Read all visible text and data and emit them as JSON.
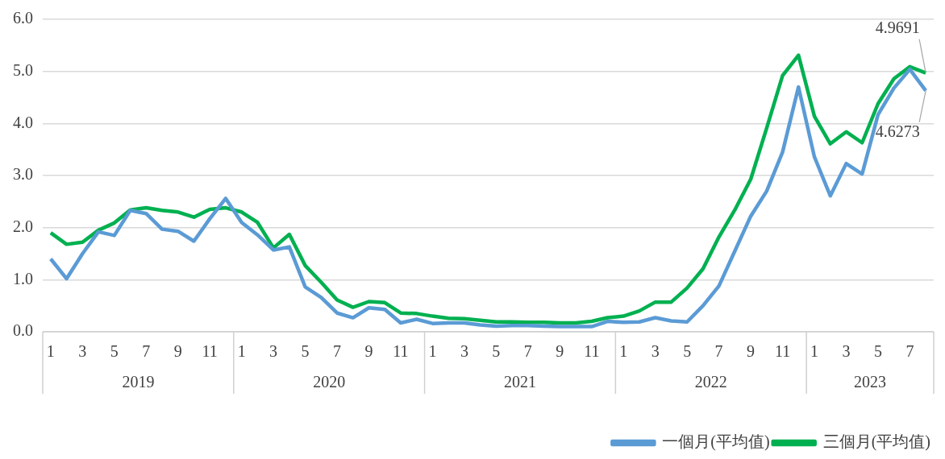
{
  "chart_data": {
    "type": "line",
    "categories": [
      "1",
      null,
      "3",
      null,
      "5",
      null,
      "7",
      null,
      "9",
      null,
      "11",
      null,
      "1",
      null,
      "3",
      null,
      "5",
      null,
      "7",
      null,
      "9",
      null,
      "11",
      null,
      "1",
      null,
      "3",
      null,
      "5",
      null,
      "7",
      null,
      "9",
      null,
      "11",
      null,
      "1",
      null,
      "3",
      null,
      "5",
      null,
      "7",
      null,
      "9",
      null,
      "11",
      null,
      "1",
      null,
      "3",
      null,
      "5",
      null,
      "7",
      null
    ],
    "series": [
      {
        "name": "一個月(平均值)",
        "color": "#5b9bd5",
        "values": [
          1.4,
          1.02,
          1.5,
          1.92,
          1.85,
          2.33,
          2.27,
          1.97,
          1.93,
          1.74,
          2.17,
          2.56,
          2.1,
          1.86,
          1.57,
          1.63,
          0.86,
          0.66,
          0.36,
          0.27,
          0.46,
          0.43,
          0.17,
          0.24,
          0.16,
          0.17,
          0.17,
          0.13,
          0.11,
          0.12,
          0.12,
          0.11,
          0.1,
          0.1,
          0.1,
          0.2,
          0.18,
          0.19,
          0.27,
          0.21,
          0.19,
          0.5,
          0.88,
          1.55,
          2.22,
          2.7,
          3.45,
          4.7,
          3.36,
          2.61,
          3.23,
          3.03,
          4.17,
          4.68,
          5.04,
          4.63
        ]
      },
      {
        "name": "三個月(平均值)",
        "color": "#00b050",
        "values": [
          1.9,
          1.68,
          1.72,
          1.95,
          2.09,
          2.34,
          2.38,
          2.33,
          2.3,
          2.2,
          2.35,
          2.38,
          2.3,
          2.1,
          1.61,
          1.87,
          1.27,
          0.95,
          0.61,
          0.47,
          0.58,
          0.56,
          0.36,
          0.35,
          0.3,
          0.26,
          0.25,
          0.22,
          0.19,
          0.19,
          0.18,
          0.18,
          0.17,
          0.17,
          0.2,
          0.27,
          0.3,
          0.4,
          0.57,
          0.57,
          0.84,
          1.21,
          1.82,
          2.34,
          2.93,
          3.91,
          4.92,
          5.31,
          4.14,
          3.61,
          3.84,
          3.63,
          4.38,
          4.86,
          5.09,
          4.97
        ]
      }
    ],
    "ylim": [
      0,
      6
    ],
    "yticks": [
      {
        "value": 0,
        "label": "0.0"
      },
      {
        "value": 1,
        "label": "1.0"
      },
      {
        "value": 2,
        "label": "2.0"
      },
      {
        "value": 3,
        "label": "3.0"
      },
      {
        "value": 4,
        "label": "4.0"
      },
      {
        "value": 5,
        "label": "5.0"
      },
      {
        "value": 6,
        "label": "6.0"
      }
    ],
    "annotations": [
      "2019",
      "2020",
      "2021",
      "2022",
      "2023",
      {
        "text": "4.9691",
        "y": 4.97
      },
      {
        "text": "4.6273",
        "y": 4.63
      }
    ],
    "grid": "y",
    "legend": "bottom right",
    "marker": "none",
    "line_style": "solid"
  }
}
